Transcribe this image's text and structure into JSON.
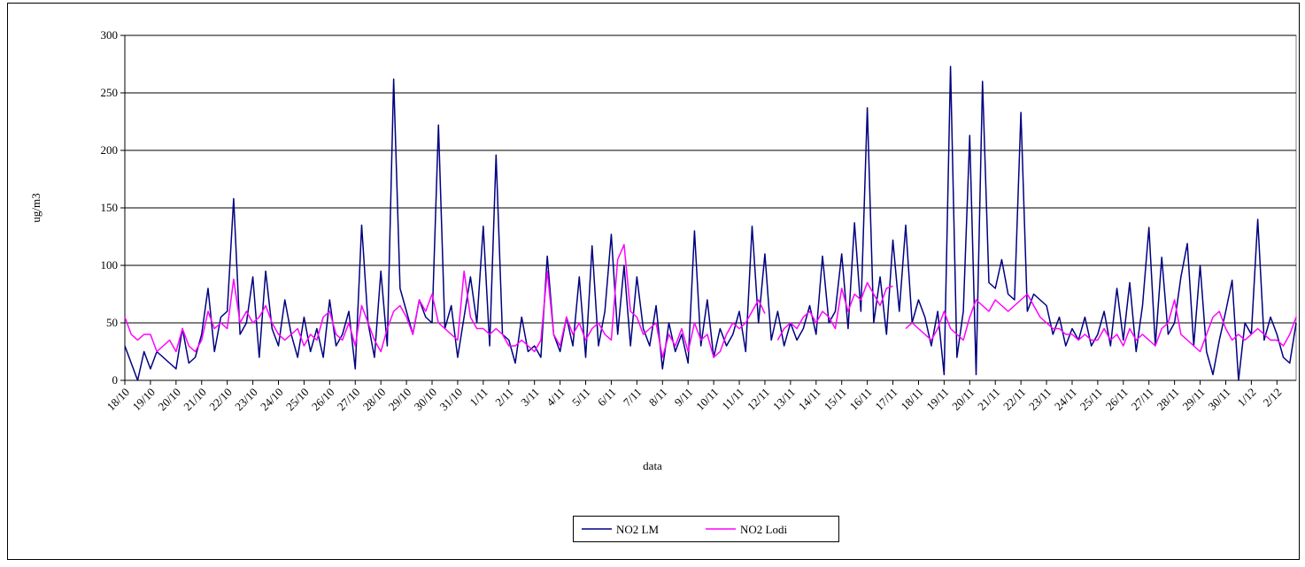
{
  "chart_data": {
    "type": "line",
    "y_label": "ug/m3",
    "x_label": "data",
    "ylim": [
      0,
      300
    ],
    "yticks": [
      0,
      50,
      100,
      150,
      200,
      250,
      300
    ],
    "grid": true,
    "legend": "bottom",
    "categories": [
      "18/10",
      null,
      null,
      null,
      "19/10",
      null,
      null,
      null,
      "20/10",
      null,
      null,
      null,
      "21/10",
      null,
      null,
      null,
      "22/10",
      null,
      null,
      null,
      "23/10",
      null,
      null,
      null,
      "24/10",
      null,
      null,
      null,
      "25/10",
      null,
      null,
      null,
      "26/10",
      null,
      null,
      null,
      "27/10",
      null,
      null,
      null,
      "28/10",
      null,
      null,
      null,
      "29/10",
      null,
      null,
      null,
      "30/10",
      null,
      null,
      null,
      "31/10",
      null,
      null,
      null,
      "1/11",
      null,
      null,
      null,
      "2/11",
      null,
      null,
      null,
      "3/11",
      null,
      null,
      null,
      "4/11",
      null,
      null,
      null,
      "5/11",
      null,
      null,
      null,
      "6/11",
      null,
      null,
      null,
      "7/11",
      null,
      null,
      null,
      "8/11",
      null,
      null,
      null,
      "9/11",
      null,
      null,
      null,
      "10/11",
      null,
      null,
      null,
      "11/11",
      null,
      null,
      null,
      "12/11",
      null,
      null,
      null,
      "13/11",
      null,
      null,
      null,
      "14/11",
      null,
      null,
      null,
      "15/11",
      null,
      null,
      null,
      "16/11",
      null,
      null,
      null,
      "17/11",
      null,
      null,
      null,
      "18/11",
      null,
      null,
      null,
      "19/11",
      null,
      null,
      null,
      "20/11",
      null,
      null,
      null,
      "21/11",
      null,
      null,
      null,
      "22/11",
      null,
      null,
      null,
      "23/11",
      null,
      null,
      null,
      "24/11",
      null,
      null,
      null,
      "25/11",
      null,
      null,
      null,
      "26/11",
      null,
      null,
      null,
      "27/11",
      null,
      null,
      null,
      "28/11",
      null,
      null,
      null,
      "29/11",
      null,
      null,
      null,
      "30/11",
      null,
      null,
      null,
      "1/12",
      null,
      null,
      null,
      "2/12",
      null,
      null,
      null
    ],
    "series": [
      {
        "name": "NO2 LM",
        "color": "#000080",
        "values": [
          30,
          15,
          0,
          25,
          10,
          25,
          20,
          15,
          10,
          45,
          15,
          20,
          40,
          80,
          25,
          55,
          60,
          158,
          40,
          50,
          90,
          20,
          95,
          45,
          30,
          70,
          40,
          20,
          55,
          25,
          45,
          20,
          70,
          30,
          40,
          60,
          10,
          135,
          50,
          20,
          95,
          30,
          262,
          80,
          60,
          40,
          70,
          55,
          50,
          222,
          45,
          65,
          20,
          55,
          90,
          50,
          134,
          30,
          196,
          40,
          35,
          15,
          55,
          25,
          30,
          20,
          108,
          40,
          25,
          55,
          30,
          90,
          20,
          117,
          30,
          60,
          127,
          40,
          100,
          30,
          90,
          45,
          30,
          65,
          10,
          50,
          25,
          40,
          15,
          130,
          30,
          70,
          20,
          45,
          30,
          40,
          60,
          25,
          134,
          50,
          110,
          35,
          60,
          30,
          50,
          35,
          45,
          65,
          40,
          108,
          50,
          60,
          110,
          45,
          137,
          60,
          237,
          50,
          90,
          40,
          122,
          60,
          135,
          50,
          70,
          55,
          30,
          60,
          5,
          273,
          20,
          60,
          213,
          5,
          260,
          85,
          80,
          105,
          75,
          70,
          233,
          60,
          75,
          70,
          65,
          40,
          55,
          30,
          45,
          35,
          55,
          30,
          40,
          60,
          30,
          80,
          35,
          85,
          25,
          65,
          133,
          30,
          107,
          40,
          50,
          90,
          119,
          30,
          100,
          25,
          5,
          35,
          60,
          87,
          0,
          50,
          40,
          140,
          35,
          55,
          40,
          20,
          15,
          50
        ]
      },
      {
        "name": "NO2 Lodi",
        "color": "#ff00ff",
        "values": [
          55,
          40,
          35,
          40,
          40,
          25,
          30,
          35,
          25,
          45,
          30,
          25,
          35,
          60,
          45,
          50,
          45,
          88,
          50,
          60,
          50,
          55,
          65,
          50,
          40,
          35,
          40,
          45,
          30,
          40,
          35,
          55,
          60,
          40,
          35,
          50,
          30,
          65,
          50,
          35,
          25,
          45,
          60,
          65,
          55,
          40,
          70,
          60,
          75,
          50,
          45,
          40,
          35,
          95,
          55,
          45,
          45,
          40,
          45,
          40,
          30,
          30,
          35,
          30,
          25,
          35,
          95,
          40,
          30,
          55,
          40,
          50,
          35,
          45,
          50,
          40,
          35,
          105,
          118,
          60,
          55,
          40,
          45,
          50,
          20,
          40,
          30,
          45,
          25,
          50,
          35,
          40,
          20,
          25,
          40,
          50,
          45,
          50,
          60,
          70,
          58,
          null,
          35,
          45,
          50,
          45,
          55,
          60,
          50,
          60,
          55,
          45,
          80,
          60,
          75,
          70,
          85,
          75,
          65,
          80,
          82,
          null,
          45,
          50,
          45,
          40,
          35,
          45,
          60,
          45,
          40,
          35,
          55,
          70,
          65,
          60,
          70,
          65,
          60,
          65,
          70,
          75,
          65,
          55,
          50,
          45,
          45,
          40,
          40,
          35,
          40,
          35,
          35,
          45,
          35,
          40,
          30,
          45,
          35,
          40,
          35,
          30,
          45,
          50,
          70,
          40,
          35,
          30,
          25,
          40,
          55,
          60,
          45,
          35,
          40,
          35,
          40,
          45,
          40,
          35,
          35,
          30,
          40,
          55
        ]
      }
    ]
  }
}
